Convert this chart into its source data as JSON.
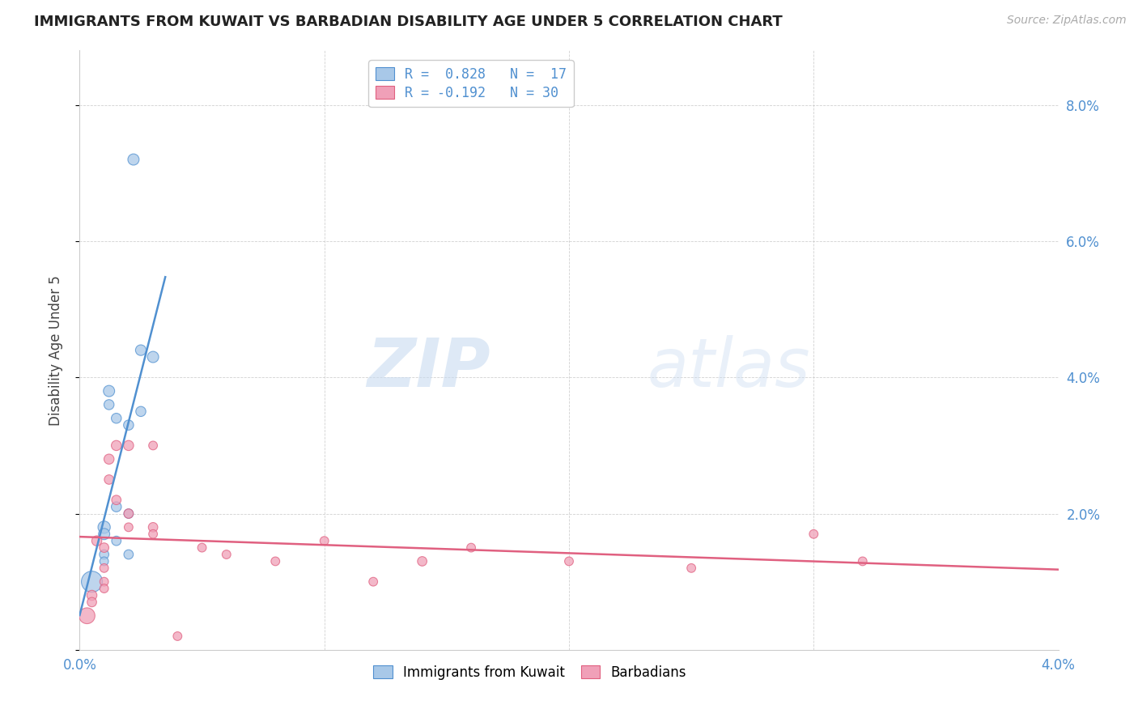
{
  "title": "IMMIGRANTS FROM KUWAIT VS BARBADIAN DISABILITY AGE UNDER 5 CORRELATION CHART",
  "source": "Source: ZipAtlas.com",
  "ylabel": "Disability Age Under 5",
  "xlim": [
    0.0,
    0.04
  ],
  "ylim": [
    0.0,
    0.088
  ],
  "yticks": [
    0.0,
    0.02,
    0.04,
    0.06,
    0.08
  ],
  "ytick_labels": [
    "",
    "2.0%",
    "4.0%",
    "6.0%",
    "8.0%"
  ],
  "xticks": [
    0.0,
    0.01,
    0.02,
    0.03,
    0.04
  ],
  "xtick_labels": [
    "0.0%",
    "",
    "",
    "",
    "4.0%"
  ],
  "legend_r1": "R =  0.828",
  "legend_n1": "N =  17",
  "legend_r2": "R = -0.192",
  "legend_n2": "N = 30",
  "color_blue": "#A8C8E8",
  "color_pink": "#F0A0B8",
  "line_blue": "#5090D0",
  "line_pink": "#E06080",
  "watermark_zip": "ZIP",
  "watermark_atlas": "atlas",
  "label_blue": "Immigrants from Kuwait",
  "label_pink": "Barbadians",
  "kuwait_points": [
    [
      0.0005,
      0.01
    ],
    [
      0.001,
      0.018
    ],
    [
      0.001,
      0.017
    ],
    [
      0.0012,
      0.038
    ],
    [
      0.0012,
      0.036
    ],
    [
      0.0015,
      0.034
    ],
    [
      0.0015,
      0.021
    ],
    [
      0.0015,
      0.016
    ],
    [
      0.002,
      0.033
    ],
    [
      0.002,
      0.02
    ],
    [
      0.002,
      0.014
    ],
    [
      0.0025,
      0.035
    ],
    [
      0.0025,
      0.044
    ],
    [
      0.003,
      0.043
    ],
    [
      0.0022,
      0.072
    ],
    [
      0.001,
      0.014
    ],
    [
      0.001,
      0.013
    ]
  ],
  "kuwait_sizes": [
    350,
    120,
    100,
    100,
    80,
    80,
    80,
    70,
    80,
    70,
    70,
    80,
    90,
    100,
    100,
    70,
    60
  ],
  "barbadian_points": [
    [
      0.0003,
      0.005
    ],
    [
      0.0005,
      0.008
    ],
    [
      0.0005,
      0.007
    ],
    [
      0.0007,
      0.016
    ],
    [
      0.001,
      0.015
    ],
    [
      0.001,
      0.012
    ],
    [
      0.001,
      0.01
    ],
    [
      0.001,
      0.009
    ],
    [
      0.0012,
      0.028
    ],
    [
      0.0012,
      0.025
    ],
    [
      0.0015,
      0.022
    ],
    [
      0.0015,
      0.03
    ],
    [
      0.002,
      0.03
    ],
    [
      0.002,
      0.02
    ],
    [
      0.002,
      0.018
    ],
    [
      0.003,
      0.018
    ],
    [
      0.003,
      0.017
    ],
    [
      0.003,
      0.03
    ],
    [
      0.005,
      0.015
    ],
    [
      0.006,
      0.014
    ],
    [
      0.008,
      0.013
    ],
    [
      0.01,
      0.016
    ],
    [
      0.012,
      0.01
    ],
    [
      0.016,
      0.015
    ],
    [
      0.02,
      0.013
    ],
    [
      0.025,
      0.012
    ],
    [
      0.03,
      0.017
    ],
    [
      0.032,
      0.013
    ],
    [
      0.004,
      0.002
    ],
    [
      0.014,
      0.013
    ]
  ],
  "barbadian_sizes": [
    200,
    80,
    70,
    80,
    70,
    60,
    60,
    60,
    80,
    70,
    70,
    80,
    80,
    70,
    60,
    70,
    60,
    60,
    60,
    60,
    60,
    60,
    60,
    60,
    60,
    60,
    60,
    60,
    60,
    70
  ]
}
